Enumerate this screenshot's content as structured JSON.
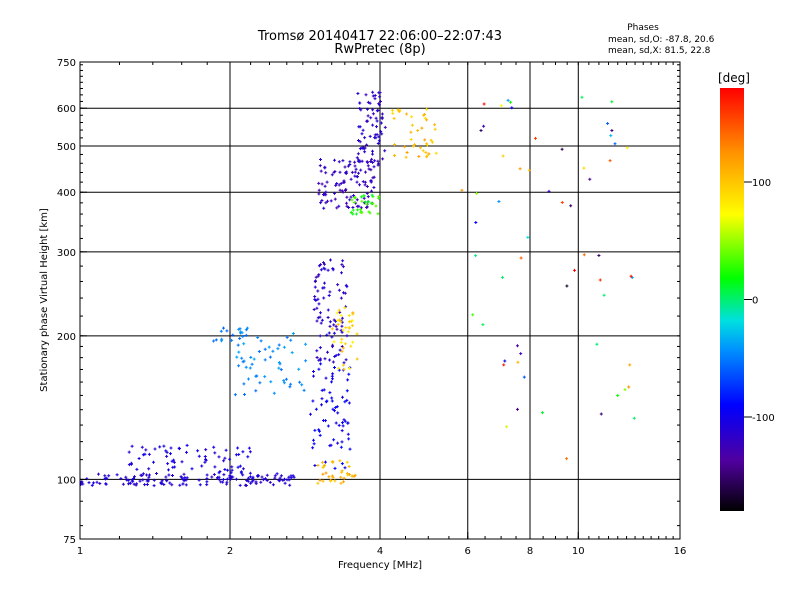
{
  "chart_data": {
    "type": "scatter",
    "title": "Tromsø 20140417 22:06:00–22:07:43",
    "subtitle": "RwPretec (8p)",
    "stats": {
      "heading": "Phases",
      "line_o": "mean, sd,O: -87.8, 20.6",
      "line_x": "mean, sd,X:  81.5, 22.8"
    },
    "xlabel": "Frequency [MHz]",
    "ylabel": "Stationary phase Virtual Height [km]",
    "x_scale": "log",
    "y_scale": "log",
    "xlim": [
      1,
      16
    ],
    "ylim": [
      75,
      750
    ],
    "x_ticks": [
      1,
      2,
      4,
      6,
      8,
      10,
      16
    ],
    "x_tick_labels": [
      "1",
      "2",
      "4",
      "6",
      "8",
      "10",
      "16"
    ],
    "y_ticks": [
      75,
      100,
      200,
      300,
      400,
      500,
      600,
      750
    ],
    "y_tick_labels": [
      "75",
      "100",
      "200",
      "300",
      "400",
      "500",
      "600",
      "750"
    ],
    "x_gridlines": [
      2,
      4,
      6,
      8,
      10
    ],
    "y_gridlines": [
      100,
      200,
      300,
      400,
      500,
      600
    ],
    "grid": true,
    "colorbar": {
      "label": "[deg]",
      "range": [
        -180,
        180
      ],
      "ticks": [
        100,
        0,
        -100
      ],
      "tick_labels": [
        "100",
        "0",
        "-100"
      ]
    },
    "clusters": [
      {
        "name": "",
        "f": [
          1.0,
          2.7
        ],
        "h": [
          97,
          103
        ],
        "phase": [
          -120,
          -100
        ],
        "n": 150
      },
      {
        "name": "",
        "f": [
          1.25,
          2.2
        ],
        "h": [
          103,
          118
        ],
        "phase": [
          -115,
          -95
        ],
        "n": 70
      },
      {
        "name": "",
        "f": [
          1.85,
          2.2
        ],
        "h": [
          195,
          210
        ],
        "phase": [
          -60,
          -40
        ],
        "n": 18
      },
      {
        "name": "",
        "f": [
          2.05,
          2.9
        ],
        "h": [
          150,
          205
        ],
        "phase": [
          -55,
          -35
        ],
        "n": 55
      },
      {
        "name": "",
        "f": [
          2.9,
          3.5
        ],
        "h": [
          105,
          175
        ],
        "phase": [
          -105,
          -85
        ],
        "n": 70
      },
      {
        "name": "",
        "f": [
          2.95,
          3.45
        ],
        "h": [
          175,
          290
        ],
        "phase": [
          -125,
          -105
        ],
        "n": 90
      },
      {
        "name": "",
        "f": [
          3.2,
          3.6
        ],
        "h": [
          170,
          230
        ],
        "phase": [
          70,
          110
        ],
        "n": 35
      },
      {
        "name": "",
        "f": [
          3.0,
          3.6
        ],
        "h": [
          98,
          110
        ],
        "phase": [
          95,
          125
        ],
        "n": 35
      },
      {
        "name": "",
        "f": [
          3.0,
          3.9
        ],
        "h": [
          370,
          470
        ],
        "phase": [
          -130,
          -110
        ],
        "n": 110
      },
      {
        "name": "",
        "f": [
          3.6,
          4.1
        ],
        "h": [
          450,
          650
        ],
        "phase": [
          -125,
          -105
        ],
        "n": 75
      },
      {
        "name": "",
        "f": [
          3.5,
          4.0
        ],
        "h": [
          360,
          395
        ],
        "phase": [
          10,
          40
        ],
        "n": 30
      },
      {
        "name": "",
        "f": [
          4.2,
          5.2
        ],
        "h": [
          470,
          600
        ],
        "phase": [
          85,
          120
        ],
        "n": 40
      },
      {
        "name": "",
        "f": [
          5.8,
          13.0
        ],
        "h": [
          110,
          650
        ],
        "phase": [
          -180,
          180
        ],
        "n": 60
      }
    ]
  }
}
